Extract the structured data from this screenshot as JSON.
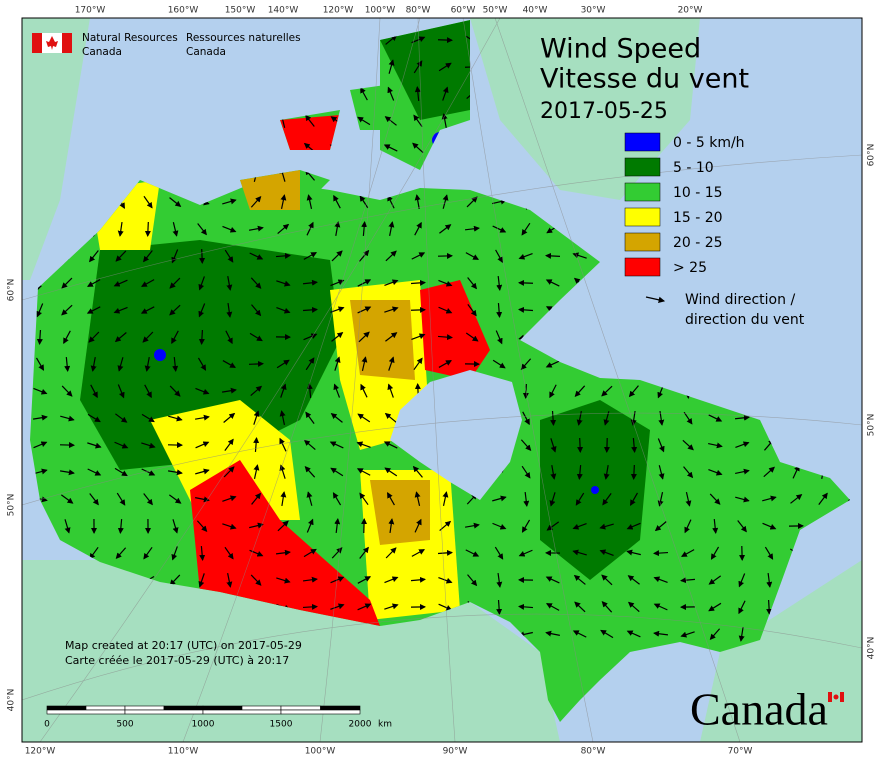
{
  "agency": {
    "en": [
      "Natural Resources",
      "Canada"
    ],
    "fr": [
      "Ressources naturelles",
      "Canada"
    ]
  },
  "title": [
    "Wind Speed",
    "Vitesse du vent"
  ],
  "date": "2017-05-25",
  "legend": [
    {
      "label": "0 - 5 km/h",
      "color": "#0000ff"
    },
    {
      "label": "5 - 10",
      "color": "#007a00"
    },
    {
      "label": "10 - 15",
      "color": "#33cc33"
    },
    {
      "label": "15 - 20",
      "color": "#ffff00"
    },
    {
      "label": "20 - 25",
      "color": "#d4a500"
    },
    {
      "label": "> 25",
      "color": "#ff0000"
    }
  ],
  "legend_arrow": [
    "Wind direction /",
    "direction du vent"
  ],
  "graticule": {
    "top": [
      "170°W",
      "160°W",
      "150°W",
      "140°W",
      "120°W",
      "100°W",
      "80°W",
      "60°W",
      "50°W",
      "40°W",
      "30°W",
      "20°W"
    ],
    "bottom": [
      "120°W",
      "110°W",
      "100°W",
      "90°W",
      "80°W",
      "70°W"
    ],
    "left": [
      "60°N",
      "50°N",
      "40°N"
    ],
    "right": [
      "60°N",
      "50°N",
      "40°N"
    ]
  },
  "scale": {
    "ticks": [
      "0",
      "500",
      "1000",
      "1500",
      "2000"
    ],
    "unit": "km"
  },
  "note": [
    "Map created at 20:17 (UTC) on 2017-05-29",
    "Carte créée le 2017-05-29 (UTC) à 20:17"
  ],
  "wordmark": "Canada"
}
